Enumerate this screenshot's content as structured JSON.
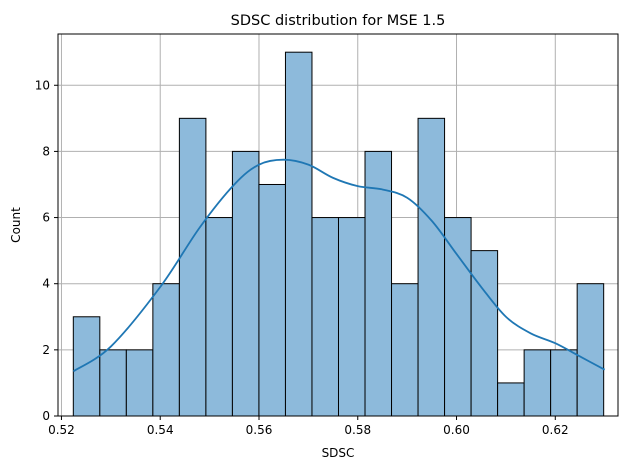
{
  "chart_data": {
    "type": "bar",
    "title": "SDSC distribution for MSE  1.5",
    "xlabel": "SDSC",
    "ylabel": "Count",
    "xlim": [
      0.5193,
      0.6327
    ],
    "ylim": [
      0,
      11.55
    ],
    "xticks": [
      "0.52",
      "0.54",
      "0.56",
      "0.58",
      "0.60",
      "0.62"
    ],
    "xtick_values": [
      0.52,
      0.54,
      0.56,
      0.58,
      0.6,
      0.62
    ],
    "yticks": [
      "0",
      "2",
      "4",
      "6",
      "8",
      "10"
    ],
    "ytick_values": [
      0,
      2,
      4,
      6,
      8,
      10
    ],
    "grid": true,
    "bins": {
      "start": 0.5224,
      "width": 0.00537,
      "counts": [
        3,
        2,
        2,
        4,
        9,
        6,
        8,
        7,
        11,
        6,
        6,
        8,
        4,
        9,
        6,
        5,
        1,
        2,
        2,
        4
      ]
    },
    "kde": {
      "x": [
        0.5224,
        0.53,
        0.54,
        0.548,
        0.555,
        0.56,
        0.565,
        0.57,
        0.575,
        0.58,
        0.585,
        0.59,
        0.595,
        0.6,
        0.605,
        0.61,
        0.615,
        0.62,
        0.625,
        0.63
      ],
      "y": [
        1.35,
        2.1,
        3.9,
        5.7,
        7.0,
        7.6,
        7.75,
        7.6,
        7.2,
        6.95,
        6.85,
        6.6,
        5.9,
        4.9,
        3.9,
        3.0,
        2.5,
        2.2,
        1.8,
        1.4
      ]
    },
    "colors": {
      "bar_fill": "#8dbadb",
      "bar_edge": "#000000",
      "kde_line": "#1f77b4",
      "grid": "#b0b0b0"
    }
  }
}
